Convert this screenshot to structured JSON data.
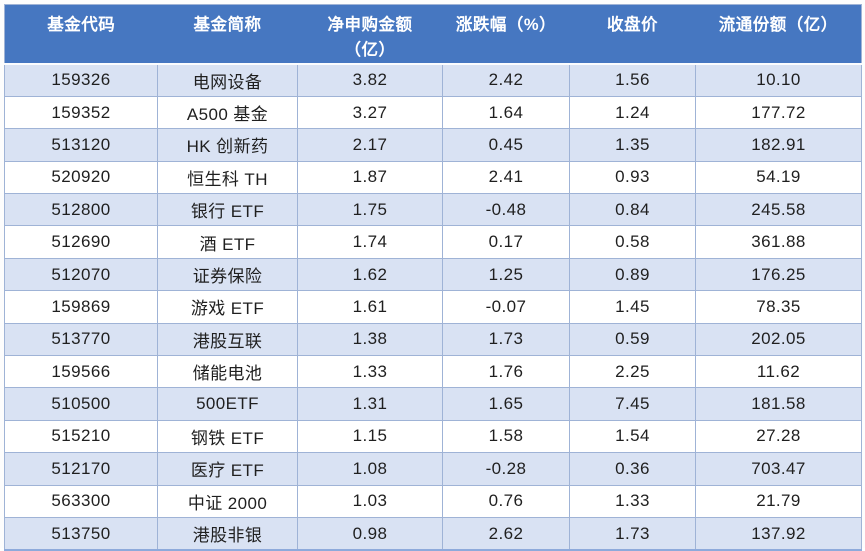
{
  "chart_data": {
    "type": "table",
    "title": "",
    "columns": [
      {
        "id": "fund-code",
        "label": "基金代码",
        "display_label": "基金代码"
      },
      {
        "id": "fund-name",
        "label": "基金简称",
        "display_label": "基金简称"
      },
      {
        "id": "net-purchase",
        "label": "净申购金额（亿）",
        "display_label": "净申购金额\n（亿）"
      },
      {
        "id": "change-pct",
        "label": "涨跌幅（%）",
        "display_label": "涨跌幅（%）"
      },
      {
        "id": "close-price",
        "label": "收盘价",
        "display_label": "收盘价"
      },
      {
        "id": "float-shares",
        "label": "流通份额（亿）",
        "display_label": "流通份额（亿）"
      }
    ],
    "rows": [
      [
        "159326",
        "电网设备",
        "3.82",
        "2.42",
        "1.56",
        "10.10"
      ],
      [
        "159352",
        "A500 基金",
        "3.27",
        "1.64",
        "1.24",
        "177.72"
      ],
      [
        "513120",
        "HK 创新药",
        "2.17",
        "0.45",
        "1.35",
        "182.91"
      ],
      [
        "520920",
        "恒生科 TH",
        "1.87",
        "2.41",
        "0.93",
        "54.19"
      ],
      [
        "512800",
        "银行 ETF",
        "1.75",
        "-0.48",
        "0.84",
        "245.58"
      ],
      [
        "512690",
        "酒 ETF",
        "1.74",
        "0.17",
        "0.58",
        "361.88"
      ],
      [
        "512070",
        "证券保险",
        "1.62",
        "1.25",
        "0.89",
        "176.25"
      ],
      [
        "159869",
        "游戏 ETF",
        "1.61",
        "-0.07",
        "1.45",
        "78.35"
      ],
      [
        "513770",
        "港股互联",
        "1.38",
        "1.73",
        "0.59",
        "202.05"
      ],
      [
        "159566",
        "储能电池",
        "1.33",
        "1.76",
        "2.25",
        "11.62"
      ],
      [
        "510500",
        "500ETF",
        "1.31",
        "1.65",
        "7.45",
        "181.58"
      ],
      [
        "515210",
        "钢铁 ETF",
        "1.15",
        "1.58",
        "1.54",
        "27.28"
      ],
      [
        "512170",
        "医疗 ETF",
        "1.08",
        "-0.28",
        "0.36",
        "703.47"
      ],
      [
        "563300",
        "中证 2000",
        "1.03",
        "0.76",
        "1.33",
        "21.79"
      ],
      [
        "513750",
        "港股非银",
        "0.98",
        "2.62",
        "1.73",
        "137.92"
      ]
    ],
    "layout": {
      "banded_rows": true,
      "header_rows": 1,
      "alignment": "center"
    }
  },
  "colors": {
    "header_bg": "#4677C1",
    "header_text": "#FFFFFF",
    "band_row_bg": "#D9E2F3",
    "plain_row_bg": "#FFFFFF",
    "border": "#9FB3D6",
    "border_strong": "#8EAADB",
    "text": "#1F1F1F"
  }
}
